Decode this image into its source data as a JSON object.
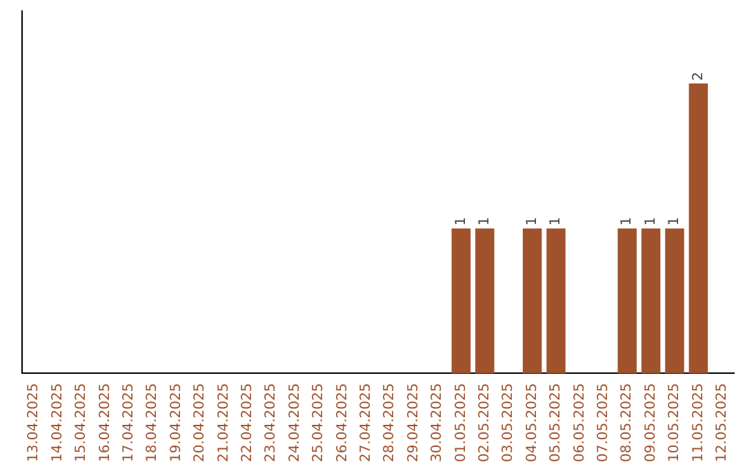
{
  "chart_data": {
    "type": "bar",
    "categories": [
      "13.04.2025",
      "14.04.2025",
      "15.04.2025",
      "16.04.2025",
      "17.04.2025",
      "18.04.2025",
      "19.04.2025",
      "20.04.2025",
      "21.04.2025",
      "22.04.2025",
      "23.04.2025",
      "24.04.2025",
      "25.04.2025",
      "26.04.2025",
      "27.04.2025",
      "28.04.2025",
      "29.04.2025",
      "30.04.2025",
      "01.05.2025",
      "02.05.2025",
      "03.05.2025",
      "04.05.2025",
      "05.05.2025",
      "06.05.2025",
      "07.05.2025",
      "08.05.2025",
      "09.05.2025",
      "10.05.2025",
      "11.05.2025",
      "12.05.2025"
    ],
    "values": [
      null,
      null,
      null,
      null,
      null,
      null,
      null,
      null,
      null,
      null,
      null,
      null,
      null,
      null,
      null,
      null,
      null,
      null,
      1,
      1,
      null,
      1,
      1,
      null,
      null,
      1,
      1,
      1,
      2,
      null
    ],
    "data_labels": true,
    "color": "#a0522d",
    "grid": false,
    "legend": false,
    "tick_labels": "x"
  }
}
